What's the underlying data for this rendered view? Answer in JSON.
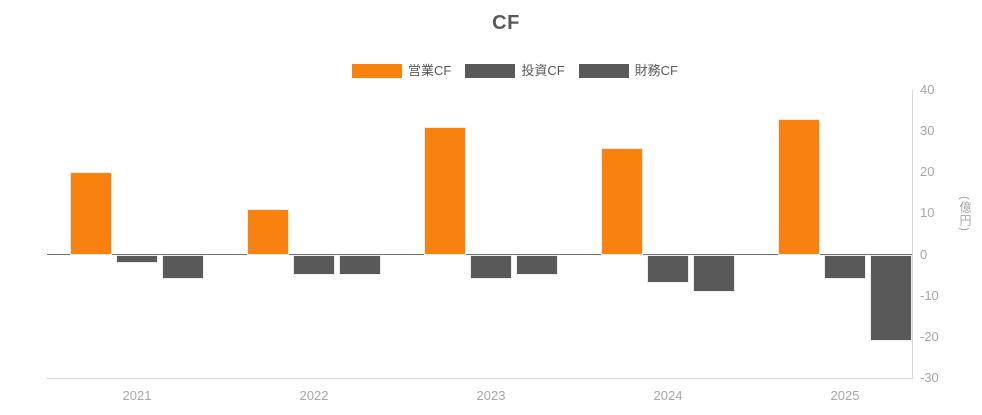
{
  "title": "CF",
  "legend": [
    {
      "label": "営業CF",
      "color": "#F8820D"
    },
    {
      "label": "投資CF",
      "color": "#595959"
    },
    {
      "label": "財務CF",
      "color": "#595959"
    }
  ],
  "y_axis": {
    "ticks": [
      40,
      30,
      20,
      10,
      0,
      -10,
      -20,
      -30
    ],
    "unit_label": "(億円)"
  },
  "x_axis": {
    "labels": [
      "2021",
      "2022",
      "2023",
      "2024",
      "2025"
    ]
  },
  "chart_data": {
    "type": "bar",
    "title": "CF",
    "categories": [
      "2021",
      "2022",
      "2023",
      "2024",
      "2025"
    ],
    "series": [
      {
        "name": "営業CF",
        "color": "#F8820D",
        "values": [
          20,
          11,
          31,
          26,
          33
        ]
      },
      {
        "name": "投資CF",
        "color": "#595959",
        "values": [
          -2,
          -5,
          -6,
          -7,
          -6
        ]
      },
      {
        "name": "財務CF",
        "color": "#595959",
        "values": [
          -6,
          -5,
          -5,
          -9,
          -21
        ]
      }
    ],
    "xlabel": "",
    "ylabel": "(億円)",
    "ylim": [
      -30,
      40
    ],
    "grid": false,
    "legend_position": "top",
    "zero_line": true
  },
  "colors": {
    "operating_cf": "#F8820D",
    "investing_cf": "#595959",
    "financing_cf": "#595959",
    "axis_border": "#D9D9D9",
    "tick_label": "#A6A6A6",
    "title_text": "#595959",
    "zero_line": "#595959"
  }
}
